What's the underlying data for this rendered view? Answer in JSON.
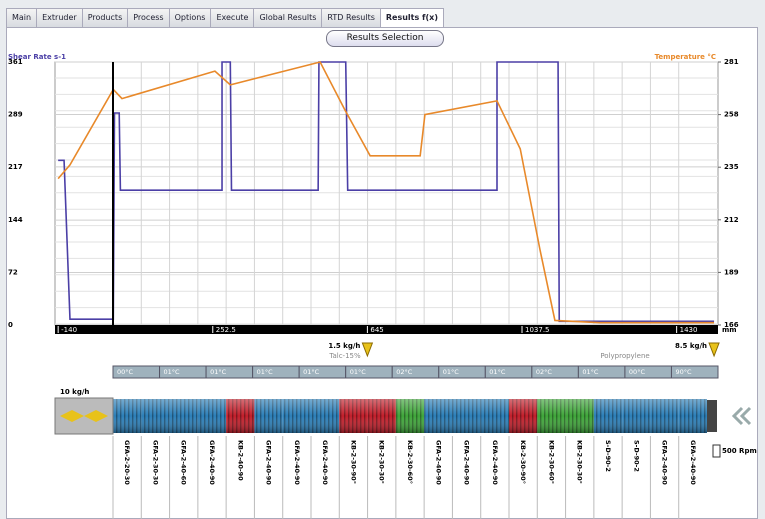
{
  "tabs": [
    "Main",
    "Extruder",
    "Products",
    "Process",
    "Options",
    "Execute",
    "Global Results",
    "RTD Results",
    "Results f(x)"
  ],
  "active_tab": 8,
  "button": "Results Selection",
  "chart_data": {
    "type": "line",
    "ylabel": "Shear Rate s-1",
    "y2label": "Temperature °C",
    "xlabel": "mm",
    "xlim": [
      -148,
      1535
    ],
    "xticks": [
      -140,
      252.5,
      645,
      1037.5,
      1430
    ],
    "ylim": [
      0,
      361
    ],
    "yticks": [
      0,
      72,
      144,
      217,
      289,
      361
    ],
    "y2lim": [
      166,
      281
    ],
    "y2ticks": [
      166,
      189,
      212,
      235,
      258,
      281
    ],
    "grid": true,
    "series": [
      {
        "color": "#4b3fa6",
        "x": [
          -140,
          -125,
          -110,
          0,
          3,
          15,
          18,
          276,
          276,
          297,
          300,
          520,
          522,
          590,
          595,
          974,
          974,
          1129,
          1132,
          1525
        ],
        "values": [
          226,
          226,
          8,
          8,
          291,
          291,
          185,
          185,
          361,
          361,
          185,
          185,
          361,
          361,
          185,
          185,
          361,
          361,
          5,
          5
        ]
      },
      {
        "color": "#e8892a",
        "axis": "y2",
        "x": [
          -140,
          -110,
          0,
          22,
          258,
          297,
          525,
          588,
          652,
          779,
          791,
          974,
          1033,
          1083,
          1121,
          1236,
          1525
        ],
        "values": [
          230,
          236,
          269,
          265,
          277,
          271,
          281,
          260,
          240,
          240,
          258,
          264,
          243,
          199,
          168,
          167,
          167
        ]
      }
    ]
  },
  "extruder": {
    "feeds": [
      {
        "label": "1.5 kg/h",
        "at": 645
      },
      {
        "label": "8.5 kg/h",
        "at": 1525
      }
    ],
    "materials": [
      "Talc-15%",
      "Polypropylene"
    ],
    "main_feed": "10 kg/h",
    "speed": "500 Rpm",
    "zones": [
      "00°C",
      "01°C",
      "01°C",
      "01°C",
      "01°C",
      "01°C",
      "02°C",
      "01°C",
      "01°C",
      "02°C",
      "01°C",
      "00°C",
      "90°C"
    ],
    "elements": [
      {
        "label": "GFA-2-20-30",
        "color": "#2c7fb8"
      },
      {
        "label": "GFA-2-30-30",
        "color": "#2c7fb8"
      },
      {
        "label": "GFA-2-40-60",
        "color": "#2c7fb8"
      },
      {
        "label": "GFA-2-40-90",
        "color": "#2c7fb8"
      },
      {
        "label": "KB-2-40-90",
        "color": "#c21f2b"
      },
      {
        "label": "GFA-2-40-90",
        "color": "#2c7fb8"
      },
      {
        "label": "GFA-2-40-90",
        "color": "#2c7fb8"
      },
      {
        "label": "GFA-2-40-90",
        "color": "#2c7fb8"
      },
      {
        "label": "KB-2-30-90°",
        "color": "#c21f2b"
      },
      {
        "label": "KB-2-30-30°",
        "color": "#c21f2b"
      },
      {
        "label": "KB-2-30-60°",
        "color": "#3fa63a"
      },
      {
        "label": "GFA-2-40-90",
        "color": "#2c7fb8"
      },
      {
        "label": "GFA-2-40-90",
        "color": "#2c7fb8"
      },
      {
        "label": "GFA-2-40-90",
        "color": "#2c7fb8"
      },
      {
        "label": "KB-2-30-90°",
        "color": "#c21f2b"
      },
      {
        "label": "KB-2-30-60°",
        "color": "#3fa63a"
      },
      {
        "label": "KB-2-30-30°",
        "color": "#3fa63a"
      },
      {
        "label": "S-D-90-2",
        "color": "#2c7fb8"
      },
      {
        "label": "S-D-90-2",
        "color": "#2c7fb8"
      },
      {
        "label": "GFA-2-40-90",
        "color": "#2c7fb8"
      },
      {
        "label": "GFA-2-40-90",
        "color": "#2c7fb8"
      }
    ]
  }
}
